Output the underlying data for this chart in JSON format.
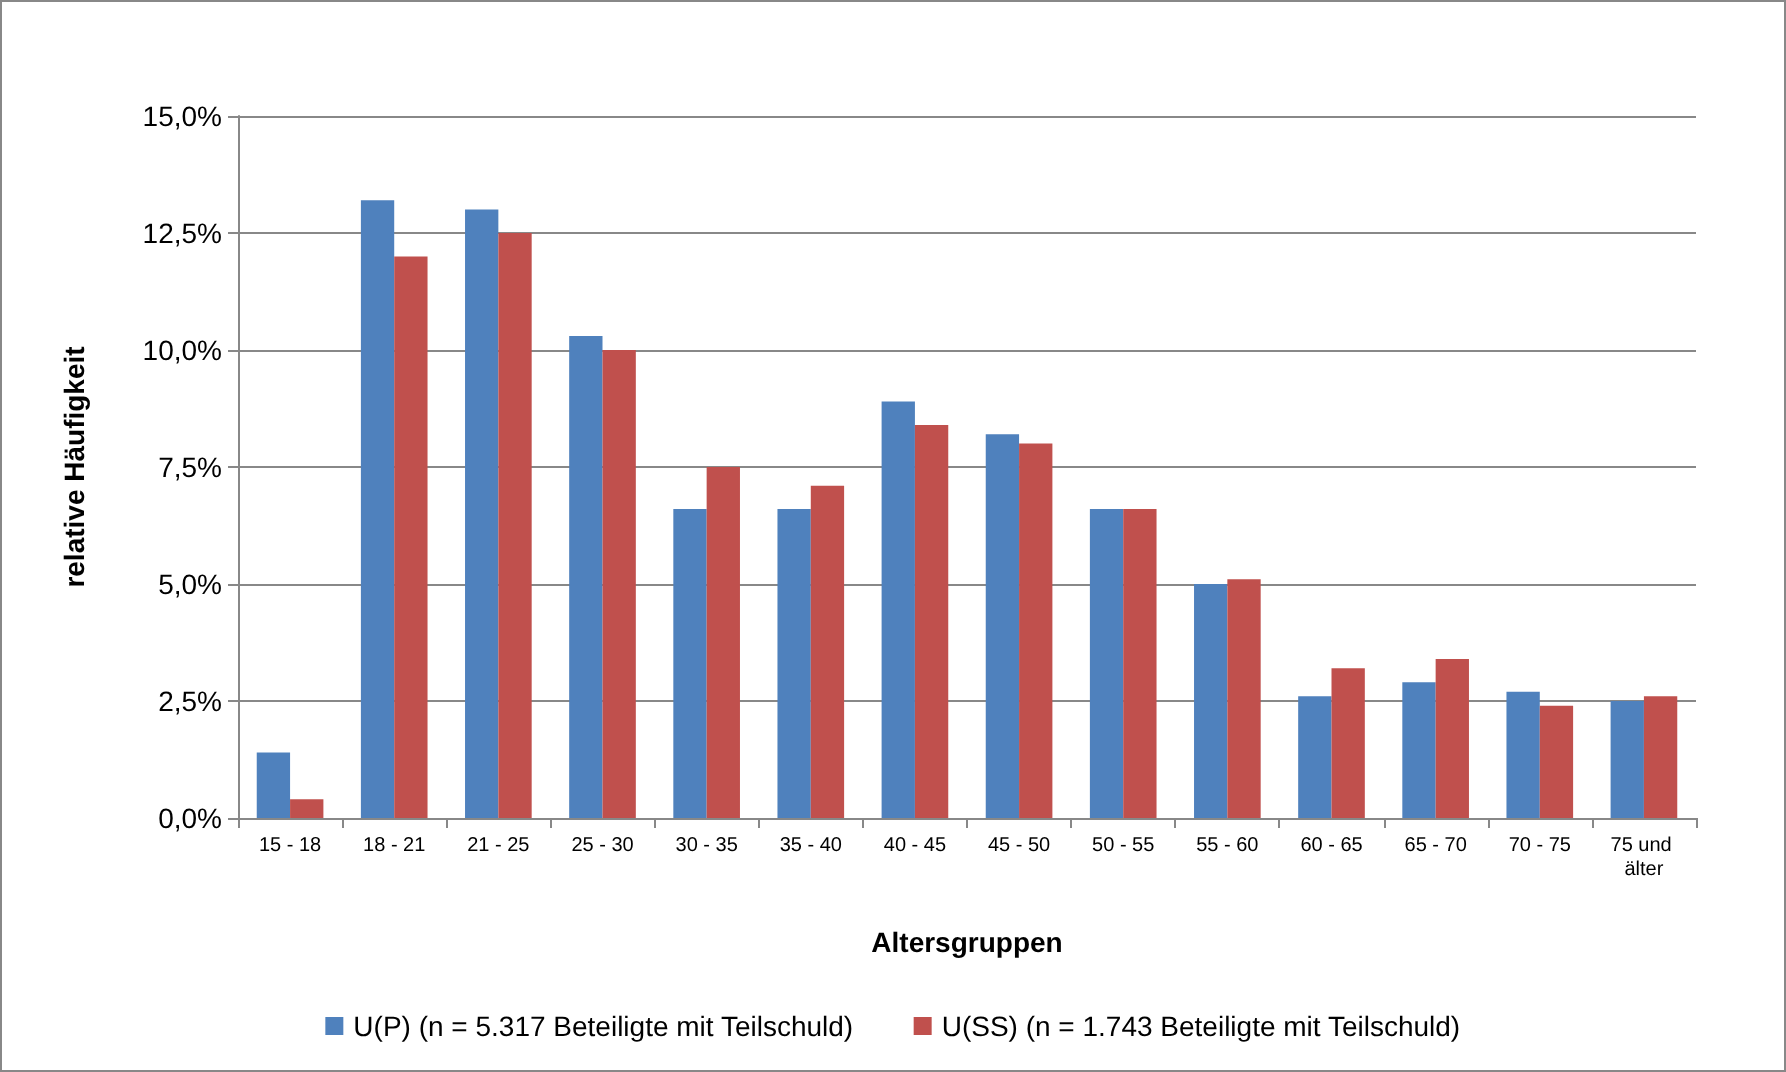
{
  "chart_data": {
    "type": "bar",
    "xlabel": "Altersgruppen",
    "ylabel": "relative Häufigkeit",
    "categories": [
      "15 - 18",
      "18 - 21",
      "21 - 25",
      "25 - 30",
      "30 - 35",
      "35 - 40",
      "40 - 45",
      "45 - 50",
      "50 - 55",
      "55 - 60",
      "60 - 65",
      "65 - 70",
      "70 - 75",
      "75 und älter"
    ],
    "series": [
      {
        "name": "U(P) (n = 5.317 Beteiligte mit Teilschuld)",
        "color": "#4f81bd",
        "values": [
          1.4,
          13.2,
          13.0,
          10.3,
          6.6,
          6.6,
          8.9,
          8.2,
          6.6,
          5.0,
          2.6,
          2.9,
          2.7,
          2.5
        ]
      },
      {
        "name": "U(SS) (n = 1.743 Beteiligte mit Teilschuld)",
        "color": "#c0504d",
        "values": [
          0.4,
          12.0,
          12.5,
          10.0,
          7.5,
          7.1,
          8.4,
          8.0,
          6.6,
          5.1,
          3.2,
          3.4,
          2.4,
          2.6
        ]
      }
    ],
    "ylim": [
      0,
      15
    ],
    "yticks": [
      {
        "value": 0,
        "label": "0,0%"
      },
      {
        "value": 2.5,
        "label": "2,5%"
      },
      {
        "value": 5,
        "label": "5,0%"
      },
      {
        "value": 7.5,
        "label": "7,5%"
      },
      {
        "value": 10,
        "label": "10,0%"
      },
      {
        "value": 12.5,
        "label": "12,5%"
      },
      {
        "value": 15,
        "label": "15,0%"
      }
    ],
    "grid": "y",
    "legend": "bottom"
  }
}
